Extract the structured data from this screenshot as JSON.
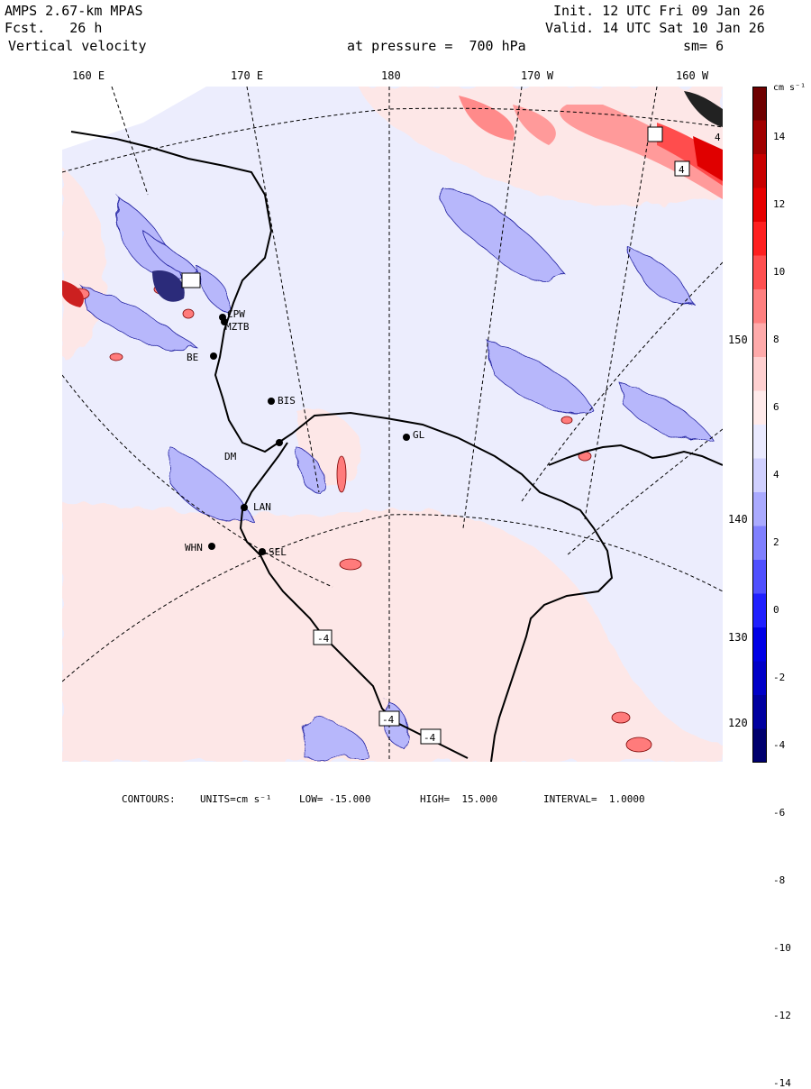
{
  "header": {
    "model": "AMPS 2.67-km MPAS",
    "forecast": "Fcst.   26 h",
    "field": "Vertical velocity",
    "pressure": "at pressure =  700 hPa",
    "init": "Init. 12 UTC Fri 09 Jan 26",
    "valid": "Valid. 14 UTC Sat 10 Jan 26",
    "smooth": "sm= 6"
  },
  "longitude_labels": [
    "160 E",
    "170 E",
    "180",
    "170 W",
    "160 W"
  ],
  "latitude_labels": [
    "150 W",
    "140 W",
    "130 W",
    "120 W"
  ],
  "stations": [
    "CPW",
    "MZTB",
    "BE",
    "BIS",
    "GL",
    "DM",
    "LAN",
    "WHN",
    "SEL"
  ],
  "contour_labels": [
    "4",
    "4",
    "-4",
    "-4",
    "-4"
  ],
  "colorbar": {
    "units": "cm s⁻¹",
    "ticks": [
      "14",
      "12",
      "10",
      "8",
      "6",
      "4",
      "2",
      "0",
      "-2",
      "-4",
      "-6",
      "-8",
      "-10",
      "-12",
      "-14"
    ],
    "colors": [
      "#6e0000",
      "#a00000",
      "#c80000",
      "#e60000",
      "#ff2020",
      "#ff5050",
      "#ff8080",
      "#ffaaaa",
      "#ffd0d0",
      "#ffeaea",
      "#eaeaff",
      "#d0d0ff",
      "#aaaaff",
      "#8080ff",
      "#5050ff",
      "#2020ff",
      "#0000e6",
      "#0000c8",
      "#0000a0",
      "#00006e"
    ]
  },
  "footer": {
    "contours": "CONTOURS:",
    "units": "UNITS=cm s⁻¹",
    "low": "LOW= -15.000",
    "high": "HIGH=  15.000",
    "interval": "INTERVAL=  1.0000"
  }
}
